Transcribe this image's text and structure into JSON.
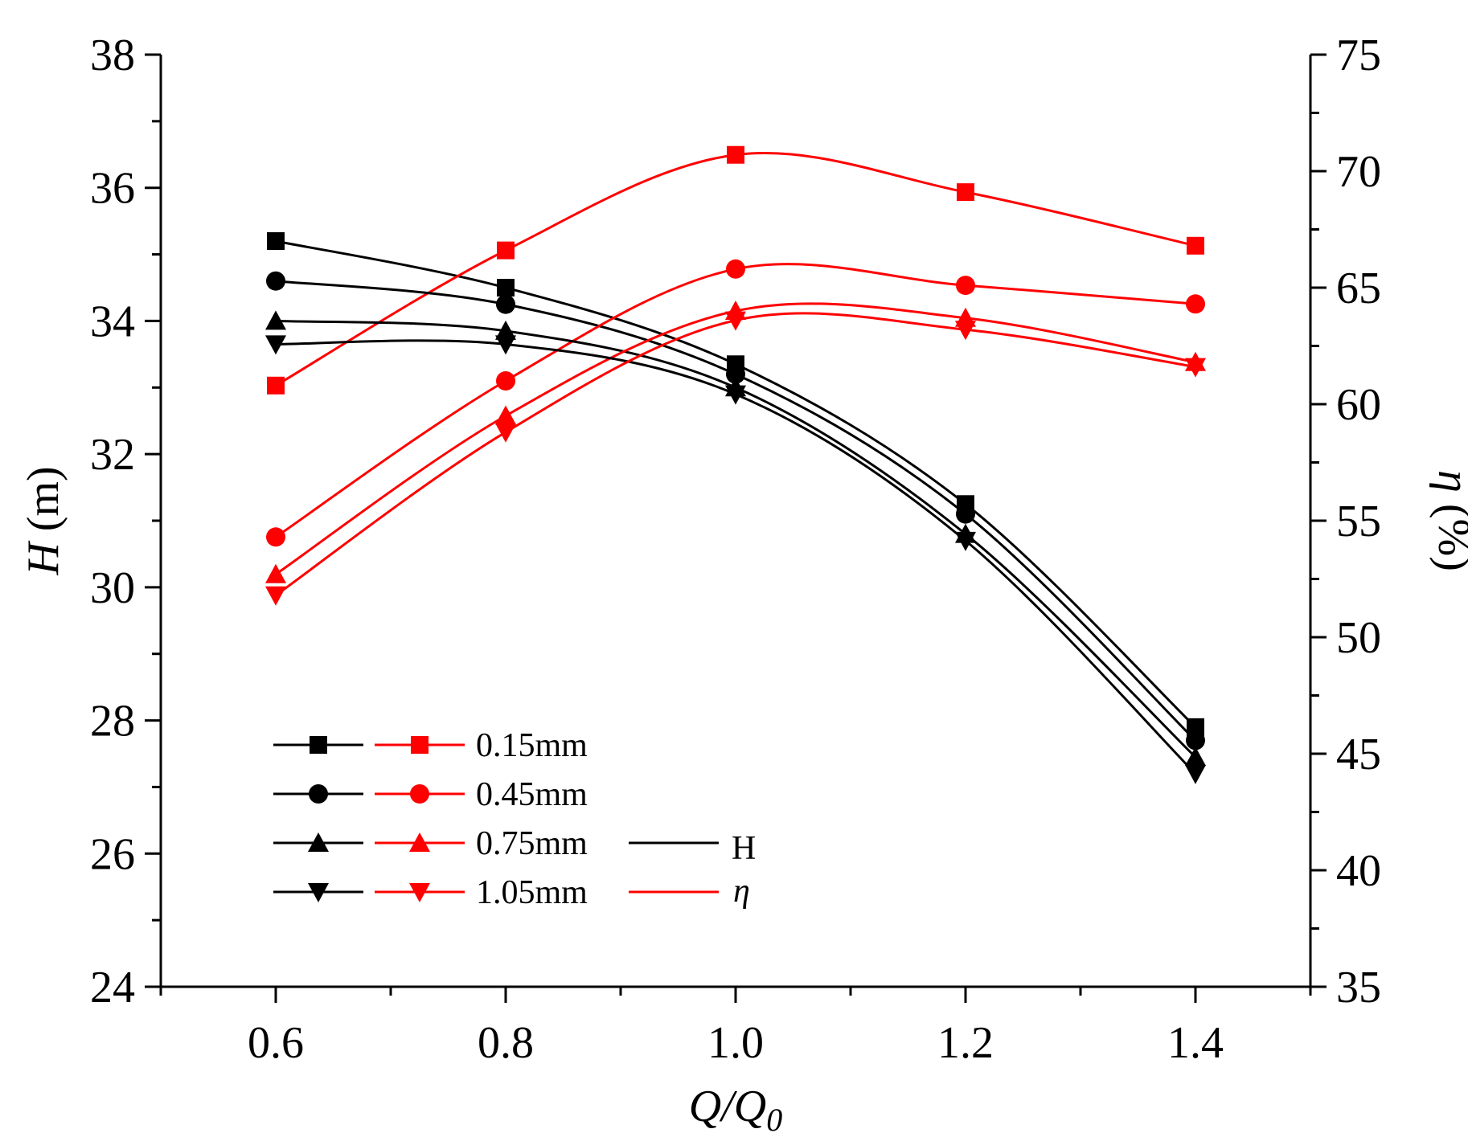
{
  "chart_data": {
    "type": "line",
    "x": [
      0.6,
      0.8,
      1.0,
      1.2,
      1.4
    ],
    "xlim": [
      0.5,
      1.5
    ],
    "xticks": [
      "0.6",
      "0.8",
      "1.0",
      "1.2",
      "1.4"
    ],
    "ylim_left": [
      24,
      38
    ],
    "yticks_left": [
      "24",
      "26",
      "28",
      "30",
      "32",
      "34",
      "36",
      "38"
    ],
    "ylim_right": [
      35,
      75
    ],
    "yticks_right": [
      "35",
      "40",
      "45",
      "50",
      "55",
      "60",
      "65",
      "70",
      "75"
    ],
    "xlabel": {
      "main": "Q/Q",
      "sub": "0"
    },
    "ylabel_left": {
      "italic": "H",
      "rest": " (m)"
    },
    "ylabel_right": {
      "italic": "η",
      "rest": " (%)"
    },
    "colors": {
      "H": "#000000",
      "eta": "#ff0000"
    },
    "legend": {
      "position": "bottom-left",
      "entries": [
        "0.15mm",
        "0.45mm",
        "0.75mm",
        "1.05mm"
      ],
      "type_labels": [
        "H",
        "η"
      ]
    },
    "series": [
      {
        "name": "0.15mm",
        "marker": "square",
        "H": [
          35.2,
          34.5,
          33.35,
          31.25,
          27.9
        ],
        "eta": [
          60.8,
          66.6,
          70.7,
          69.1,
          66.8
        ]
      },
      {
        "name": "0.45mm",
        "marker": "circle",
        "H": [
          34.6,
          34.25,
          33.2,
          31.1,
          27.7
        ],
        "eta": [
          54.3,
          61.0,
          65.8,
          65.1,
          64.3
        ]
      },
      {
        "name": "0.75mm",
        "marker": "triangle-up",
        "H": [
          34.0,
          33.85,
          33.0,
          30.8,
          27.45
        ],
        "eta": [
          52.7,
          59.5,
          64.0,
          63.7,
          61.8
        ]
      },
      {
        "name": "1.05mm",
        "marker": "triangle-down",
        "H": [
          33.65,
          33.65,
          32.9,
          30.7,
          27.2
        ],
        "eta": [
          51.8,
          58.8,
          63.6,
          63.2,
          61.6
        ]
      }
    ]
  }
}
